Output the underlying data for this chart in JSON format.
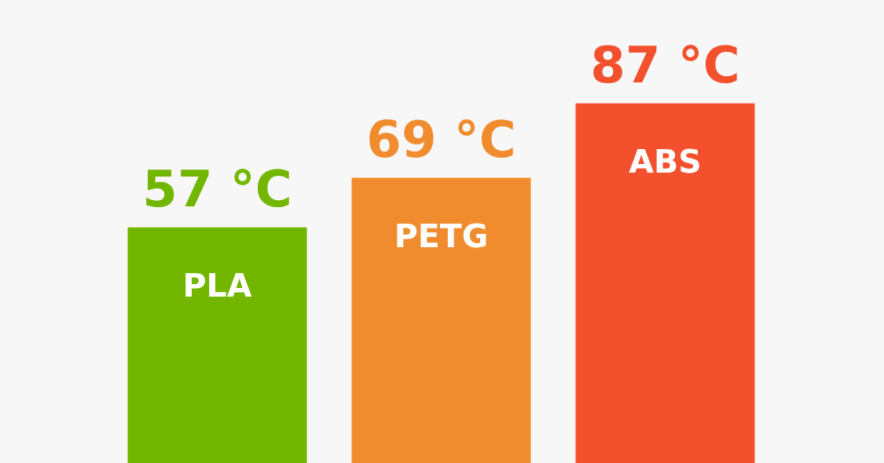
{
  "chart_data": {
    "type": "bar",
    "categories": [
      "PLA",
      "PETG",
      "ABS"
    ],
    "values": [
      57,
      69,
      87
    ],
    "colors": [
      "#72b600",
      "#f18c2e",
      "#f3512d"
    ],
    "value_labels": [
      "57 °C",
      "69 °C",
      "87 °C"
    ],
    "ylim": [
      0,
      112
    ],
    "tick_labels": false
  }
}
